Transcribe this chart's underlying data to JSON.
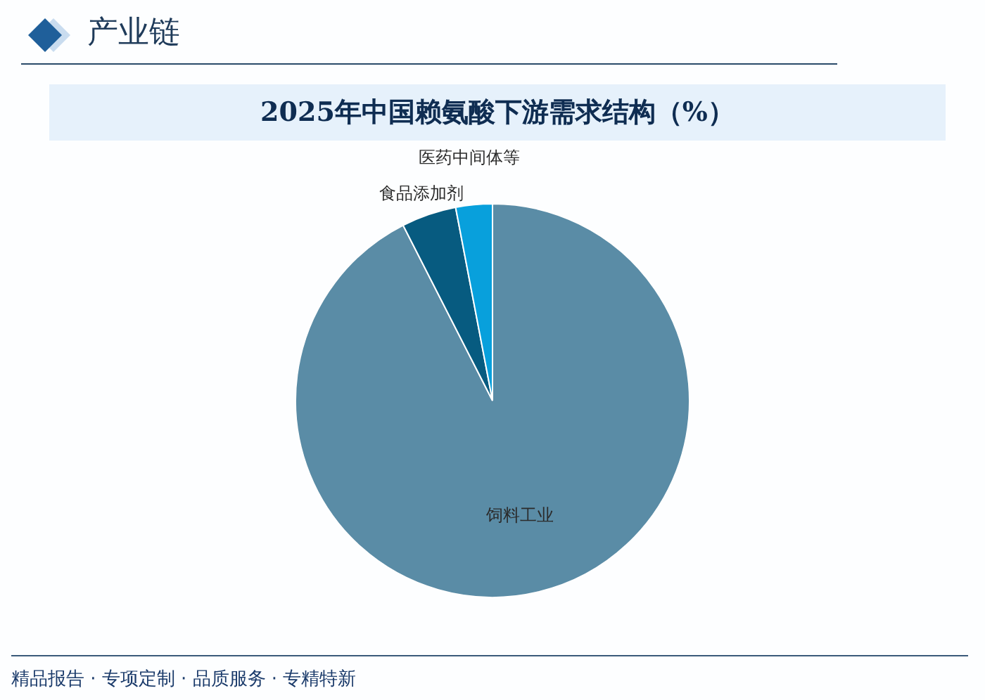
{
  "chart_data": {
    "type": "pie",
    "title": "2025年中国赖氨酸下游需求结构（%）",
    "categories": [
      "饲料工业",
      "食品添加剂",
      "医药中间体等"
    ],
    "values": [
      92.5,
      4.5,
      3
    ],
    "colors": [
      "#5a8ca6",
      "#075b80",
      "#08a0dc"
    ],
    "annotations": [
      "产业链",
      "精品报告 · 专项定制 · 品质服务 · 专精特新"
    ]
  }
}
